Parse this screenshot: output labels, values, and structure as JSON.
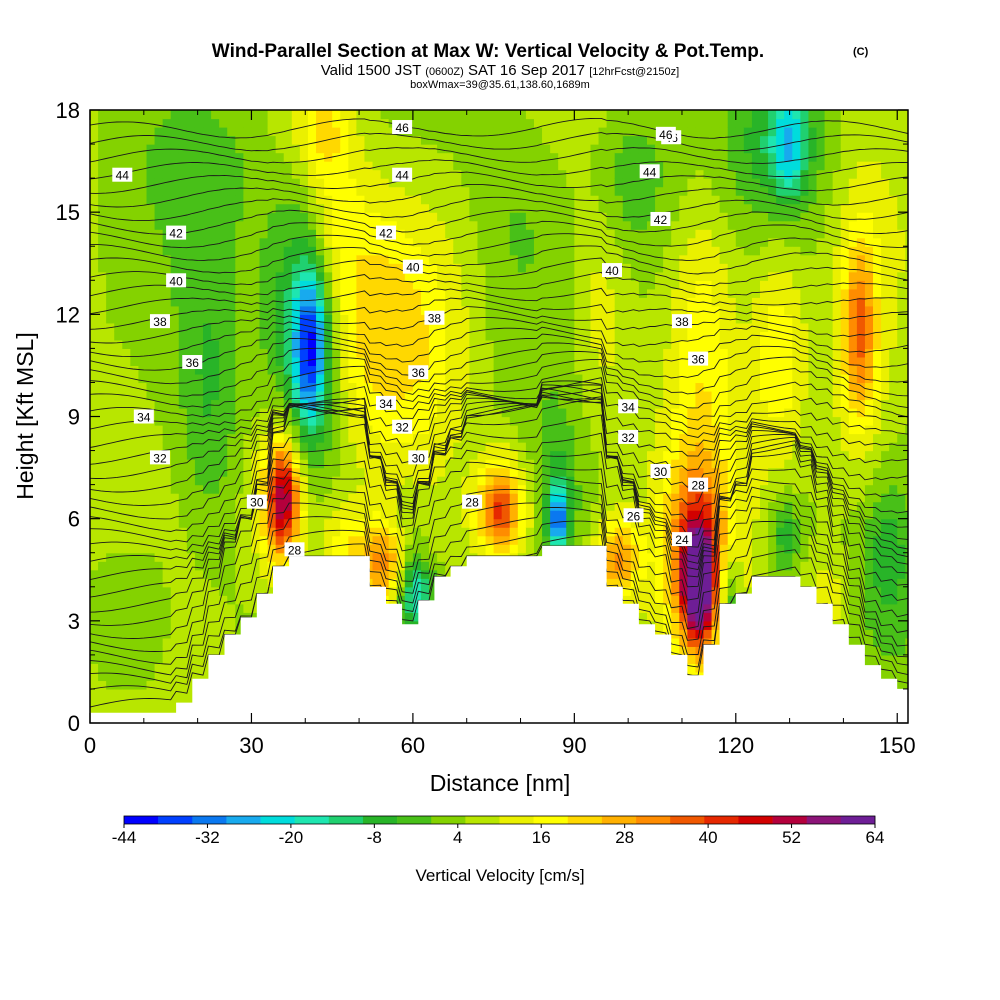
{
  "chart_data": {
    "type": "heatmap",
    "title": "Wind-Parallel Section at Max W: Vertical Velocity & Pot.Temp.",
    "title_mark": "(C)",
    "subtitle_parts": [
      "Valid 1500 JST ",
      "(0600Z)",
      " SAT 16 Sep 2017 ",
      "[12hrFcst@2150z]"
    ],
    "subtitle2": "boxWmax=39@35.61,138.60,1689m",
    "xlabel": "Distance [nm]",
    "ylabel": "Height [Kft MSL]",
    "xlim": [
      0,
      152
    ],
    "ylim": [
      0,
      18
    ],
    "x_ticks": [
      "0",
      "30",
      "60",
      "90",
      "120",
      "150"
    ],
    "x_tick_values": [
      0,
      30,
      60,
      90,
      120,
      150
    ],
    "y_ticks": [
      "0",
      "3",
      "6",
      "9",
      "12",
      "15",
      "18"
    ],
    "y_tick_values": [
      0,
      3,
      6,
      9,
      12,
      15,
      18
    ],
    "colorbar": {
      "label": "Vertical Velocity [cm/s]",
      "ticks": [
        "-44",
        "-32",
        "-20",
        "-8",
        "4",
        "16",
        "28",
        "40",
        "52",
        "64"
      ],
      "range": [
        -44,
        64
      ],
      "colors": [
        "#0000ff",
        "#0040ff",
        "#0a78f0",
        "#18aaee",
        "#00dcdc",
        "#1ee6b0",
        "#20d070",
        "#28b428",
        "#48c018",
        "#84d200",
        "#b8e600",
        "#eaf000",
        "#ffff00",
        "#ffd800",
        "#ffb000",
        "#ff8c00",
        "#f05800",
        "#e62800",
        "#d20000",
        "#b4003c",
        "#8c1478",
        "#6e1e96"
      ]
    },
    "contour_labels": [
      {
        "x": 108,
        "y": 17.2,
        "text": "46"
      },
      {
        "x": 58,
        "y": 17.5,
        "text": "46"
      },
      {
        "x": 107,
        "y": 17.3,
        "text": "46"
      },
      {
        "x": 6,
        "y": 16.1,
        "text": "44"
      },
      {
        "x": 58,
        "y": 16.1,
        "text": "44"
      },
      {
        "x": 104,
        "y": 16.2,
        "text": "44"
      },
      {
        "x": 16,
        "y": 14.4,
        "text": "42"
      },
      {
        "x": 55,
        "y": 14.4,
        "text": "42"
      },
      {
        "x": 106,
        "y": 14.8,
        "text": "42"
      },
      {
        "x": 16,
        "y": 13.0,
        "text": "40"
      },
      {
        "x": 60,
        "y": 13.4,
        "text": "40"
      },
      {
        "x": 97,
        "y": 13.3,
        "text": "40"
      },
      {
        "x": 13,
        "y": 11.8,
        "text": "38"
      },
      {
        "x": 64,
        "y": 11.9,
        "text": "38"
      },
      {
        "x": 110,
        "y": 11.8,
        "text": "38"
      },
      {
        "x": 19,
        "y": 10.6,
        "text": "36"
      },
      {
        "x": 61,
        "y": 10.3,
        "text": "36"
      },
      {
        "x": 113,
        "y": 10.7,
        "text": "36"
      },
      {
        "x": 10,
        "y": 9.0,
        "text": "34"
      },
      {
        "x": 55,
        "y": 9.4,
        "text": "34"
      },
      {
        "x": 100,
        "y": 9.3,
        "text": "34"
      },
      {
        "x": 13,
        "y": 7.8,
        "text": "32"
      },
      {
        "x": 58,
        "y": 8.7,
        "text": "32"
      },
      {
        "x": 100,
        "y": 8.4,
        "text": "32"
      },
      {
        "x": 61,
        "y": 7.8,
        "text": "30"
      },
      {
        "x": 106,
        "y": 7.4,
        "text": "30"
      },
      {
        "x": 31,
        "y": 6.5,
        "text": "30"
      },
      {
        "x": 71,
        "y": 6.5,
        "text": "28"
      },
      {
        "x": 113,
        "y": 7.0,
        "text": "28"
      },
      {
        "x": 38,
        "y": 5.1,
        "text": "28"
      },
      {
        "x": 101,
        "y": 6.1,
        "text": "26"
      },
      {
        "x": 110,
        "y": 5.4,
        "text": "24"
      }
    ],
    "terrain_top": [
      [
        0,
        0.3
      ],
      [
        16,
        0.3
      ],
      [
        16,
        0.6
      ],
      [
        19,
        0.6
      ],
      [
        19,
        1.3
      ],
      [
        22,
        1.3
      ],
      [
        22,
        2.0
      ],
      [
        25,
        2.0
      ],
      [
        25,
        2.6
      ],
      [
        28,
        2.6
      ],
      [
        28,
        3.1
      ],
      [
        31,
        3.1
      ],
      [
        31,
        3.8
      ],
      [
        34,
        3.8
      ],
      [
        34,
        4.6
      ],
      [
        37,
        4.6
      ],
      [
        37,
        4.9
      ],
      [
        52,
        4.9
      ],
      [
        52,
        4.0
      ],
      [
        55,
        4.0
      ],
      [
        55,
        3.5
      ],
      [
        58,
        3.5
      ],
      [
        58,
        2.9
      ],
      [
        61,
        2.9
      ],
      [
        61,
        3.6
      ],
      [
        64,
        3.6
      ],
      [
        64,
        4.3
      ],
      [
        67,
        4.3
      ],
      [
        67,
        4.6
      ],
      [
        70,
        4.6
      ],
      [
        70,
        4.9
      ],
      [
        84,
        4.9
      ],
      [
        84,
        5.2
      ],
      [
        96,
        5.2
      ],
      [
        96,
        4.0
      ],
      [
        99,
        4.0
      ],
      [
        99,
        3.5
      ],
      [
        102,
        3.5
      ],
      [
        102,
        2.9
      ],
      [
        105,
        2.9
      ],
      [
        105,
        2.6
      ],
      [
        108,
        2.6
      ],
      [
        108,
        2.0
      ],
      [
        111,
        2.0
      ],
      [
        111,
        1.4
      ],
      [
        114,
        1.4
      ],
      [
        114,
        2.3
      ],
      [
        117,
        2.3
      ],
      [
        117,
        3.5
      ],
      [
        120,
        3.5
      ],
      [
        120,
        3.8
      ],
      [
        123,
        3.8
      ],
      [
        123,
        4.3
      ],
      [
        132,
        4.3
      ],
      [
        132,
        4.0
      ],
      [
        135,
        4.0
      ],
      [
        135,
        3.5
      ],
      [
        138,
        3.5
      ],
      [
        138,
        2.9
      ],
      [
        141,
        2.9
      ],
      [
        141,
        2.3
      ],
      [
        144,
        2.3
      ],
      [
        144,
        1.7
      ],
      [
        147,
        1.7
      ],
      [
        147,
        1.3
      ],
      [
        150,
        1.3
      ],
      [
        150,
        1.0
      ],
      [
        152,
        1.0
      ]
    ],
    "blobs": [
      {
        "x": 41,
        "y": 11.0,
        "rx": 3,
        "ry": 2.2,
        "w": -34
      },
      {
        "x": 40,
        "y": 12.0,
        "rx": 6,
        "ry": 4.0,
        "w": -16
      },
      {
        "x": 40,
        "y": 17.5,
        "rx": 3,
        "ry": 1.5,
        "w": -5
      },
      {
        "x": 41,
        "y": 11.0,
        "rx": 8,
        "ry": 6.0,
        "w": -6
      },
      {
        "x": 36,
        "y": 6.6,
        "rx": 3,
        "ry": 1.6,
        "w": 36
      },
      {
        "x": 35,
        "y": 6.5,
        "rx": 5,
        "ry": 2.5,
        "w": 18
      },
      {
        "x": 42,
        "y": 17.5,
        "rx": 6,
        "ry": 1.5,
        "w": 16
      },
      {
        "x": 44,
        "y": 15.0,
        "rx": 6,
        "ry": 3.0,
        "w": 12
      },
      {
        "x": 52,
        "y": 12.0,
        "rx": 9,
        "ry": 3.5,
        "w": 12
      },
      {
        "x": 63,
        "y": 11.0,
        "rx": 10,
        "ry": 4.0,
        "w": 10
      },
      {
        "x": 55,
        "y": 4.7,
        "rx": 5,
        "ry": 1.2,
        "w": 26
      },
      {
        "x": 47,
        "y": 5.0,
        "rx": 5,
        "ry": 1.5,
        "w": 14
      },
      {
        "x": 61,
        "y": 3.8,
        "rx": 3,
        "ry": 1.0,
        "w": -22
      },
      {
        "x": 59,
        "y": 4.5,
        "rx": 3,
        "ry": 1.8,
        "w": -12
      },
      {
        "x": 76,
        "y": 6.2,
        "rx": 4,
        "ry": 1.2,
        "w": 26
      },
      {
        "x": 77,
        "y": 6.5,
        "rx": 6,
        "ry": 2.0,
        "w": 12
      },
      {
        "x": 87,
        "y": 6.0,
        "rx": 1.6,
        "ry": 0.8,
        "w": -30
      },
      {
        "x": 87,
        "y": 6.5,
        "rx": 3,
        "ry": 2.0,
        "w": -12
      },
      {
        "x": 113,
        "y": 4.0,
        "rx": 2.5,
        "ry": 1.5,
        "w": 48
      },
      {
        "x": 113,
        "y": 4.8,
        "rx": 5,
        "ry": 2.6,
        "w": 26
      },
      {
        "x": 112,
        "y": 5.2,
        "rx": 8,
        "ry": 3.5,
        "w": 12
      },
      {
        "x": 98,
        "y": 4.8,
        "rx": 4,
        "ry": 1.2,
        "w": 26
      },
      {
        "x": 119,
        "y": 3.6,
        "rx": 2,
        "ry": 1.5,
        "w": -18
      },
      {
        "x": 129,
        "y": 5.5,
        "rx": 3,
        "ry": 1.2,
        "w": -14
      },
      {
        "x": 130,
        "y": 17.0,
        "rx": 3,
        "ry": 1.5,
        "w": -20
      },
      {
        "x": 128,
        "y": 17.0,
        "rx": 8,
        "ry": 2.0,
        "w": -10
      },
      {
        "x": 114,
        "y": 11.5,
        "rx": 6,
        "ry": 4.0,
        "w": 12
      },
      {
        "x": 128,
        "y": 11.0,
        "rx": 5,
        "ry": 3.0,
        "w": 14
      },
      {
        "x": 143,
        "y": 11.5,
        "rx": 3,
        "ry": 2.5,
        "w": 22
      },
      {
        "x": 143,
        "y": 11.5,
        "rx": 6,
        "ry": 5.0,
        "w": 10
      },
      {
        "x": 95,
        "y": 12.0,
        "rx": 5,
        "ry": 4.0,
        "w": 8
      },
      {
        "x": 100,
        "y": 16.0,
        "rx": 8,
        "ry": 2.5,
        "w": -10
      },
      {
        "x": 80,
        "y": 15.0,
        "rx": 8,
        "ry": 3.0,
        "w": -5
      },
      {
        "x": 8,
        "y": 3.0,
        "rx": 8,
        "ry": 2.5,
        "w": -8
      },
      {
        "x": 8,
        "y": 9.0,
        "rx": 8,
        "ry": 4.0,
        "w": 2
      },
      {
        "x": 20,
        "y": 16.5,
        "rx": 10,
        "ry": 2.0,
        "w": -6
      },
      {
        "x": 22,
        "y": 9.5,
        "rx": 5,
        "ry": 4.0,
        "w": -8
      },
      {
        "x": 148,
        "y": 5.0,
        "rx": 4,
        "ry": 2.0,
        "w": -10
      },
      {
        "x": 137,
        "y": 3.5,
        "rx": 4,
        "ry": 1.5,
        "w": 10
      }
    ]
  }
}
